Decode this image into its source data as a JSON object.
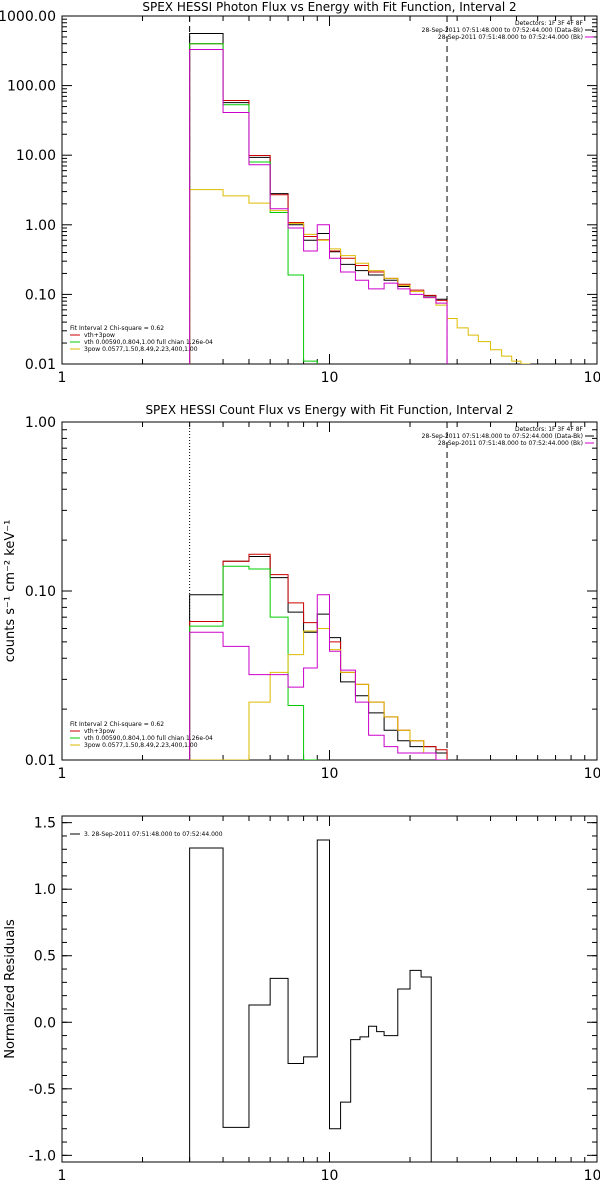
{
  "chart_data": [
    {
      "type": "line",
      "title": "SPEX HESSI Photon Flux vs Energy with Fit Function, Interval 2",
      "xlabel": "",
      "ylabel": "",
      "xscale": "log",
      "yscale": "log",
      "xlim": [
        1,
        100
      ],
      "ylim": [
        0.01,
        1000
      ],
      "xticks": [
        "1",
        "10",
        "100"
      ],
      "yticks": [
        "0.01",
        "0.10",
        "1.00",
        "10.00",
        "100.00",
        "1000.00"
      ],
      "ytick_values": [
        0.01,
        0.1,
        1,
        10,
        100,
        1000
      ],
      "vlines": [
        {
          "x": 3.0,
          "style": "dashed"
        },
        {
          "x": 27.5,
          "style": "dashed"
        }
      ],
      "info_top_right": [
        {
          "text": "Detectors: 1F 3F 4F 8F",
          "color": ""
        },
        {
          "text": "28-Sep-2011 07:51:48.000 to 07:52:44.000 (Data-Bk)",
          "color": "#000000"
        },
        {
          "text": "28-Sep-2011 07:51:48.000 to 07:52:44.000 (Bk)",
          "color": "#cc00cc"
        }
      ],
      "legend_title": "Fit Interval 2   Chi-square = 0.62",
      "legend": [
        {
          "text": "vth+3pow",
          "color": "#cc0000"
        },
        {
          "text": "vth 0.00590,0.804,1.00  full chian 1.26e-04",
          "color": "#00cc00"
        },
        {
          "text": "3pow 0.0577,1.50,8.49,2.23,400,1.00",
          "color": "#ddbb00"
        }
      ],
      "edges": [
        3.0,
        4.0,
        5.0,
        6.0,
        7.0,
        8.0,
        9.0,
        10.0,
        11.0,
        12.5,
        14.0,
        16.0,
        18.0,
        20.0,
        22.5,
        25.0,
        27.5,
        30.0,
        33.0,
        36.0,
        40.0,
        44.0,
        48.0,
        52.0,
        56.0
      ],
      "series": [
        {
          "name": "",
          "color": "#000000",
          "values": [
            560,
            57,
            9.3,
            2.8,
            1.0,
            0.6,
            0.75,
            0.41,
            0.27,
            0.22,
            0.19,
            0.16,
            0.13,
            0.11,
            0.095,
            0.085
          ]
        },
        {
          "name": "",
          "color": "#cc0000",
          "values": [
            400,
            61,
            9.9,
            2.7,
            1.08,
            0.68,
            0.61,
            0.42,
            0.33,
            0.26,
            0.21,
            0.17,
            0.14,
            0.115,
            0.097,
            0.082
          ]
        },
        {
          "name": "",
          "color": "#00cc00",
          "values": [
            400,
            53,
            8.0,
            1.5,
            0.19,
            0.011
          ]
        },
        {
          "name": "",
          "color": "#ddbb00",
          "values": [
            3.2,
            2.6,
            2.05,
            1.6,
            1.05,
            0.73,
            0.6,
            0.45,
            0.36,
            0.28,
            0.22,
            0.17,
            0.135,
            0.11,
            0.09,
            0.07,
            0.045,
            0.033,
            0.026,
            0.021,
            0.016,
            0.013,
            0.011,
            0.009
          ]
        },
        {
          "name": "",
          "color": "#cc00cc",
          "values": [
            330,
            41,
            7.3,
            1.7,
            0.9,
            0.42,
            1.0,
            0.33,
            0.21,
            0.16,
            0.12,
            0.145,
            0.12,
            0.1,
            0.09,
            0.075
          ]
        }
      ]
    },
    {
      "type": "line",
      "title": "SPEX HESSI Count Flux vs Energy with Fit Function, Interval 2",
      "xlabel": "",
      "ylabel": "counts s⁻¹ cm⁻² keV⁻¹",
      "xscale": "log",
      "yscale": "log",
      "xlim": [
        1,
        100
      ],
      "ylim": [
        0.01,
        1
      ],
      "xticks": [
        "1",
        "10",
        "100"
      ],
      "yticks": [
        "0.01",
        "0.10",
        "1.00"
      ],
      "ytick_values": [
        0.01,
        0.1,
        1
      ],
      "vlines": [
        {
          "x": 3.0,
          "style": "dotted"
        },
        {
          "x": 27.5,
          "style": "dashed"
        }
      ],
      "info_top_right": [
        {
          "text": "Detectors: 1F 3F 4F 8F",
          "color": ""
        },
        {
          "text": "28-Sep-2011 07:51:48.000 to 07:52:44.000 (Data-Bk)",
          "color": "#000000"
        },
        {
          "text": "28-Sep-2011 07:51:48.000 to 07:52:44.000 (Bk)",
          "color": "#cc00cc"
        }
      ],
      "legend_title": "Fit Interval 2   Chi-square = 0.62",
      "legend": [
        {
          "text": "vth+3pow",
          "color": "#cc0000"
        },
        {
          "text": "vth 0.00590,0.804,1.00  full chian 1.26e-04",
          "color": "#00cc00"
        },
        {
          "text": "3pow 0.0577,1.50,8.49,2.23,400,1.00",
          "color": "#ddbb00"
        }
      ],
      "edges": [
        3.0,
        4.0,
        5.0,
        6.0,
        7.0,
        8.0,
        9.0,
        10.0,
        11.0,
        12.5,
        14.0,
        16.0,
        18.0,
        20.0,
        22.5,
        25.0,
        27.5
      ],
      "series": [
        {
          "name": "",
          "color": "#000000",
          "values": [
            0.095,
            0.15,
            0.16,
            0.12,
            0.075,
            0.057,
            0.073,
            0.053,
            0.029,
            0.024,
            0.019,
            0.015,
            0.013,
            0.012,
            0.012,
            0.011
          ]
        },
        {
          "name": "",
          "color": "#cc0000",
          "values": [
            0.066,
            0.15,
            0.165,
            0.125,
            0.085,
            0.065,
            0.06,
            0.05,
            0.033,
            0.028,
            0.022,
            0.018,
            0.015,
            0.013,
            0.012,
            0.0115
          ]
        },
        {
          "name": "",
          "color": "#00cc00",
          "values": [
            0.062,
            0.14,
            0.135,
            0.07,
            0.021,
            0.01
          ]
        },
        {
          "name": "",
          "color": "#ddbb00",
          "values": [
            0.008,
            0.009,
            0.022,
            0.033,
            0.042,
            0.058,
            0.06,
            0.045,
            0.033,
            0.028,
            0.022,
            0.018,
            0.015,
            0.013,
            0.011,
            0.01
          ]
        },
        {
          "name": "",
          "color": "#cc00cc",
          "values": [
            0.057,
            0.047,
            0.032,
            0.032,
            0.027,
            0.035,
            0.095,
            0.044,
            0.034,
            0.022,
            0.014,
            0.012,
            0.011,
            0.011,
            0.011,
            0.01
          ]
        }
      ]
    },
    {
      "type": "line",
      "title": "",
      "xlabel": "",
      "ylabel": "Normalized Residuals",
      "xscale": "log",
      "yscale": "linear",
      "xlim": [
        1,
        100
      ],
      "ylim": [
        -1.05,
        1.55
      ],
      "xticks": [
        "1",
        "10",
        "100"
      ],
      "yticks": [
        "-1.0",
        "-0.5",
        "0.0",
        "0.5",
        "1.0",
        "1.5"
      ],
      "ytick_values": [
        -1.0,
        -0.5,
        0.0,
        0.5,
        1.0,
        1.5
      ],
      "legend": [
        {
          "text": "3. 28-Sep-2011 07:51:48.000 to 07:52:44.000",
          "color": "#000000"
        }
      ],
      "edges": [
        3.0,
        4.0,
        5.0,
        6.0,
        7.0,
        8.0,
        9.0,
        10.0,
        11.0,
        12.0,
        13.0,
        14.0,
        15.0,
        16.0,
        18.0,
        20.0,
        22.0,
        24.0,
        26.0,
        27.5
      ],
      "series": [
        {
          "name": "",
          "color": "#000000",
          "values": [
            1.31,
            -0.79,
            0.13,
            0.33,
            -0.31,
            -0.26,
            1.37,
            -0.8,
            -0.6,
            -0.13,
            -0.11,
            -0.03,
            -0.07,
            -0.1,
            0.25,
            0.39,
            0.34
          ]
        }
      ]
    }
  ]
}
